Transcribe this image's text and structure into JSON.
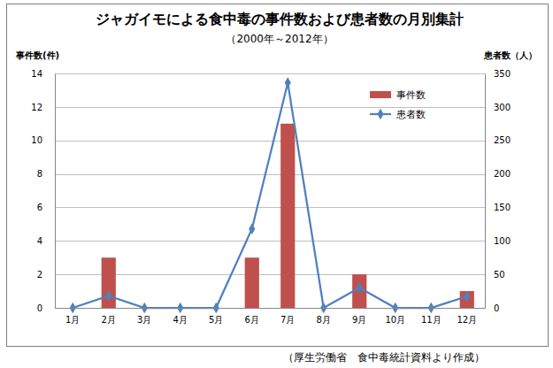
{
  "chart_data": {
    "type": "bar",
    "title": "ジャガイモによる食中毒の事件数および患者数の月別集計",
    "subtitle": "（2000年～2012年）",
    "y_label": "事件数(件)",
    "y2_label": "患者数（人）",
    "source": "（厚生労働省　食中毒統計資料より作成）",
    "categories": [
      "1月",
      "2月",
      "3月",
      "4月",
      "5月",
      "6月",
      "7月",
      "8月",
      "9月",
      "10月",
      "11月",
      "12月"
    ],
    "series": [
      {
        "name": "事件数",
        "type": "bar",
        "color": "#c0504d",
        "values": [
          0,
          3,
          0,
          0,
          0,
          3,
          11,
          0,
          2,
          0,
          0,
          1
        ]
      },
      {
        "name": "患者数",
        "type": "line",
        "axis": "y2",
        "color": "#4f81bd",
        "marker": "diamond",
        "values": [
          0,
          18,
          0,
          0,
          0,
          118,
          336,
          0,
          30,
          0,
          0,
          17
        ]
      }
    ],
    "ylim": [
      0,
      14
    ],
    "yticks": [
      0,
      2,
      4,
      6,
      8,
      10,
      12,
      14
    ],
    "y2lim": [
      0,
      350
    ],
    "y2ticks": [
      0,
      50,
      100,
      150,
      200,
      250,
      300,
      350
    ],
    "grid": true,
    "legend": "top-right"
  }
}
